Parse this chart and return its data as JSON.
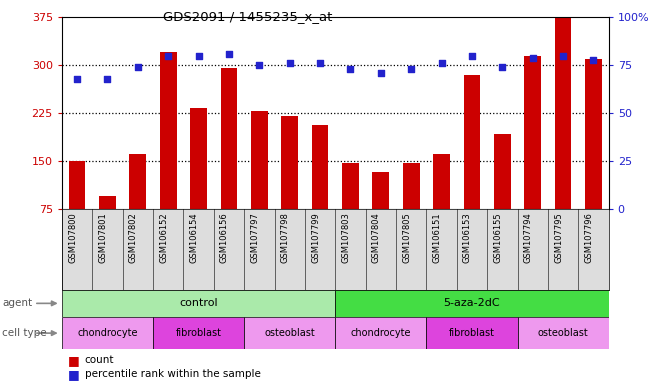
{
  "title": "GDS2091 / 1455235_x_at",
  "samples": [
    "GSM107800",
    "GSM107801",
    "GSM107802",
    "GSM106152",
    "GSM106154",
    "GSM106156",
    "GSM107797",
    "GSM107798",
    "GSM107799",
    "GSM107803",
    "GSM107804",
    "GSM107805",
    "GSM106151",
    "GSM106153",
    "GSM106155",
    "GSM107794",
    "GSM107795",
    "GSM107796"
  ],
  "counts": [
    151,
    96,
    162,
    320,
    234,
    295,
    228,
    221,
    206,
    147,
    133,
    148,
    161,
    285,
    193,
    315,
    375,
    310
  ],
  "percentiles": [
    68,
    68,
    74,
    80,
    80,
    81,
    75,
    76,
    76,
    73,
    71,
    73,
    76,
    80,
    74,
    79,
    80,
    78
  ],
  "ylim_left": [
    75,
    375
  ],
  "ylim_right": [
    0,
    100
  ],
  "yticks_left": [
    75,
    150,
    225,
    300,
    375
  ],
  "yticks_right": [
    0,
    25,
    50,
    75,
    100
  ],
  "bar_color": "#cc0000",
  "dot_color": "#2222cc",
  "agent_control_label": "control",
  "agent_5aza_label": "5-aza-2dC",
  "agent_bg_control": "#aaeaaa",
  "agent_bg_5aza": "#44dd44",
  "cell_type_groups": [
    {
      "label": "chondrocyte",
      "start": 0,
      "end": 2,
      "color": "#ee99ee"
    },
    {
      "label": "fibroblast",
      "start": 3,
      "end": 5,
      "color": "#dd44dd"
    },
    {
      "label": "osteoblast",
      "start": 6,
      "end": 8,
      "color": "#ee99ee"
    },
    {
      "label": "chondrocyte",
      "start": 9,
      "end": 11,
      "color": "#ee99ee"
    },
    {
      "label": "fibroblast",
      "start": 12,
      "end": 14,
      "color": "#dd44dd"
    },
    {
      "label": "osteoblast",
      "start": 15,
      "end": 17,
      "color": "#ee99ee"
    }
  ],
  "legend_count_label": "count",
  "legend_pct_label": "percentile rank within the sample",
  "agent_label": "agent",
  "celltype_label": "cell type",
  "tick_label_color_left": "#cc0000",
  "tick_label_color_right": "#2222cc",
  "xtick_bg": "#dddddd",
  "bar_bottom": 75
}
